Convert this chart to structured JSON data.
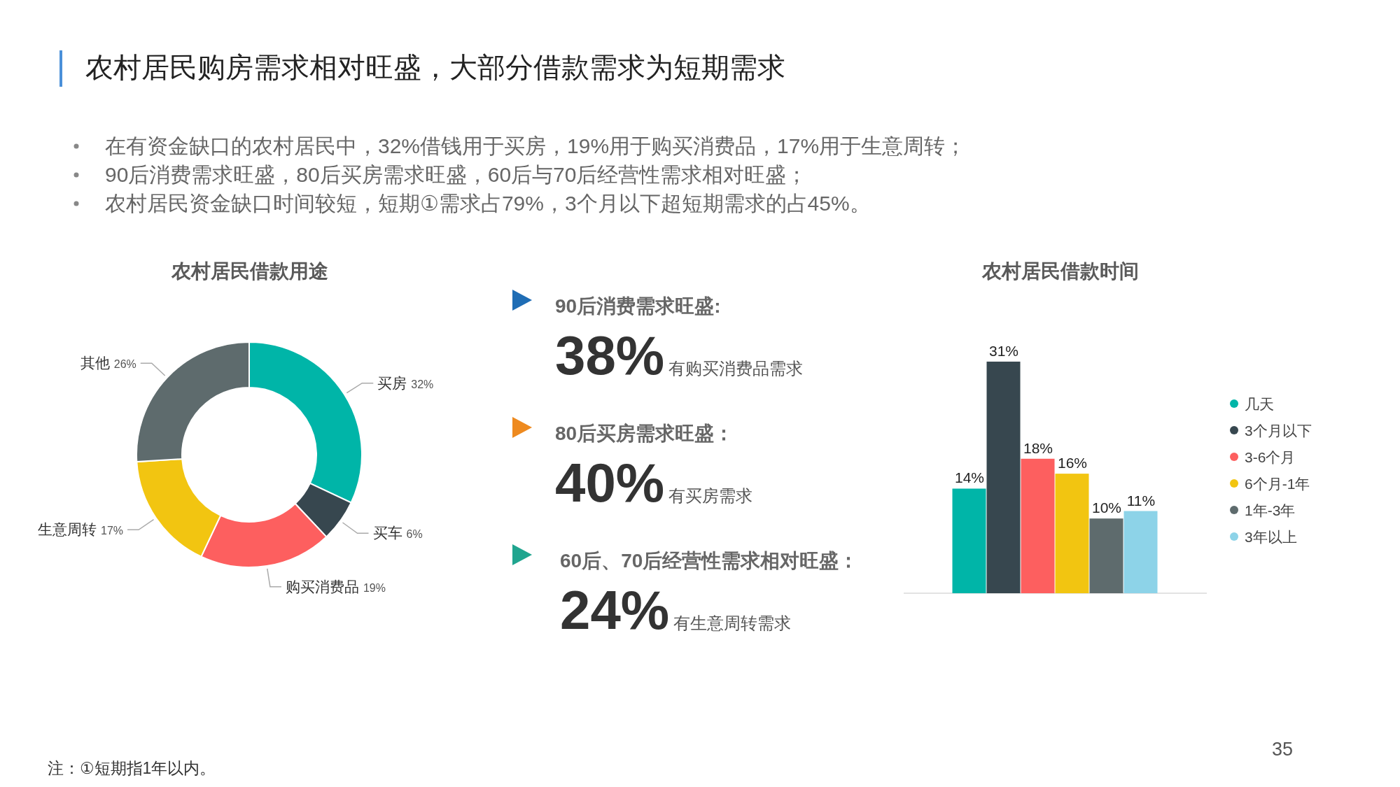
{
  "chart_data": [
    {
      "type": "other",
      "title": "农村居民购房需求相对旺盛，大部分借款需求为短期需求",
      "annotations": [
        "在有资金缺口的农村居民中，32%借钱用于买房，19%用于购买消费品，17%用于生意周转；",
        "90后消费需求旺盛，80后买房需求旺盛，60后与70后经营性需求相对旺盛；",
        "农村居民资金缺口时间较短，短期①需求占79%，3个月以下超短期需求的占45%。",
        "注：①短期指1年以内。",
        "35"
      ]
    },
    {
      "type": "donut",
      "title": "农村居民借款用途",
      "categories": [
        "买房",
        "买车",
        "购买消费品",
        "生意周转",
        "其他"
      ],
      "values": [
        32,
        6,
        19,
        17,
        26
      ],
      "colors": [
        "#00b5a8",
        "#37474f",
        "#fd5f5f",
        "#f2c511",
        "#5e6b6d"
      ],
      "value_labels": [
        "32%",
        "6%",
        "19%",
        "17%",
        "26%"
      ]
    },
    {
      "type": "other",
      "annotations": [
        "90后消费需求旺盛:",
        "38%",
        "有购买消费品需求",
        "80后买房需求旺盛：",
        "40%",
        "有买房需求",
        "60后、70后经营性需求相对旺盛：",
        "24%",
        "有生意周转需求"
      ]
    },
    {
      "type": "bar",
      "title": "农村居民借款时间",
      "categories": [
        null
      ],
      "legend": "right",
      "series": [
        {
          "name": "几天",
          "color": "#00b5a8",
          "values": [
            14
          ],
          "value_labels": [
            "14%"
          ]
        },
        {
          "name": "3个月以下",
          "color": "#37474f",
          "values": [
            31
          ],
          "value_labels": [
            "31%"
          ]
        },
        {
          "name": "3-6个月",
          "color": "#fd5f5f",
          "values": [
            18
          ],
          "value_labels": [
            "18%"
          ]
        },
        {
          "name": "6个月-1年",
          "color": "#f2c511",
          "values": [
            16
          ],
          "value_labels": [
            "16%"
          ]
        },
        {
          "name": "1年-3年",
          "color": "#5e6b6d",
          "values": [
            10
          ],
          "value_labels": [
            "10%"
          ]
        },
        {
          "name": "3年以上",
          "color": "#8dd3e8",
          "values": [
            11
          ],
          "value_labels": [
            "11%"
          ]
        }
      ]
    }
  ]
}
